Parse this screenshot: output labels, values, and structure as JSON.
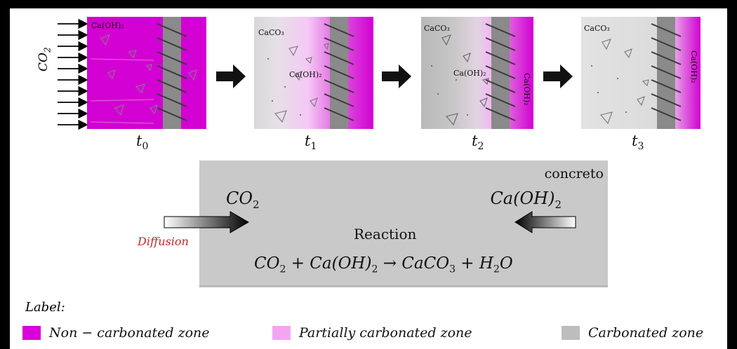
{
  "co2_side_label": "CO",
  "co2_side_sub": "2",
  "panels": [
    {
      "time": "t",
      "time_sub": "0",
      "chem_top": "Ca(OH)₂"
    },
    {
      "time": "t",
      "time_sub": "1",
      "chem_top": "CaCO₃",
      "chem_mid": "Ca(OH)₂"
    },
    {
      "time": "t",
      "time_sub": "2",
      "chem_top": "CaCO₃",
      "chem_mid": "Ca(OH)₂",
      "chem_side": "Ca(OH)₂"
    },
    {
      "time": "t",
      "time_sub": "3",
      "chem_top": "CaCO₃",
      "chem_side": "Ca(OH)₂"
    }
  ],
  "reaction": {
    "concreto": "concreto",
    "co2_left": "CO",
    "co2_left_sub": "2",
    "caoh_right": "Ca(OH)",
    "caoh_right_sub": "2",
    "center": "Reaction",
    "diffusion": "Diffusion",
    "equation": {
      "t1": "CO",
      "s1": "2",
      "t2": " + Ca(OH)",
      "s2": "2",
      "t3": " → CaCO",
      "s3": "3",
      "t4": " + H",
      "s4": "2",
      "t5": "O"
    }
  },
  "legend": {
    "title": "Label:",
    "items": [
      {
        "label": "Non − carbonated zone",
        "color": "#d900d9"
      },
      {
        "label": "Partially carbonated zone",
        "color": "#f2a6f2"
      },
      {
        "label": "Carbonated zone",
        "color": "#bdbdbd"
      }
    ]
  }
}
